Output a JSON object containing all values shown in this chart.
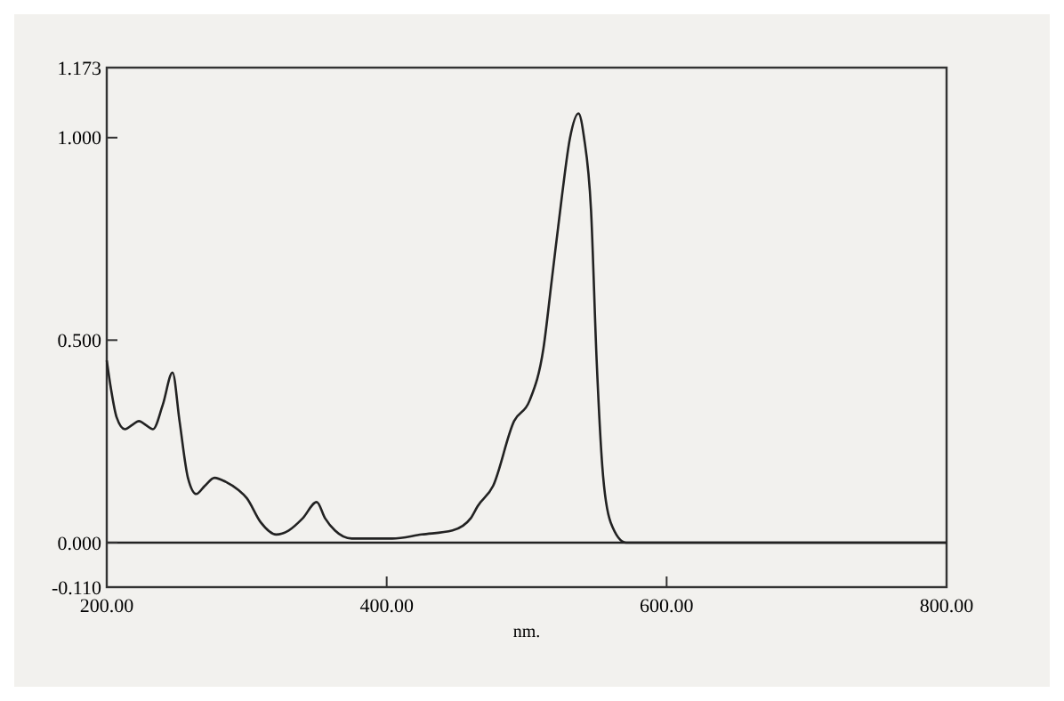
{
  "chart_data": {
    "type": "line",
    "xlabel": "nm.",
    "xlim": [
      200,
      800
    ],
    "ylim": [
      -0.11,
      1.173
    ],
    "xticks": [
      {
        "value": 200,
        "label": "200.00"
      },
      {
        "value": 400,
        "label": "400.00"
      },
      {
        "value": 600,
        "label": "600.00"
      },
      {
        "value": 800,
        "label": "800.00"
      }
    ],
    "yticks": [
      {
        "value": -0.11,
        "label": "-0.110"
      },
      {
        "value": 0,
        "label": "0.000"
      },
      {
        "value": 0.5,
        "label": "0.500"
      },
      {
        "value": 1,
        "label": "1.000"
      },
      {
        "value": 1.173,
        "label": "1.173"
      }
    ],
    "ref_lines": [
      {
        "axis": "y",
        "value": 0,
        "color": "#222222"
      }
    ],
    "series": [
      {
        "color": "#222222",
        "x": [
          200,
          203,
          207,
          213,
          218,
          223,
          228,
          233,
          240,
          247,
          252,
          258,
          264,
          270,
          277,
          285,
          294,
          300,
          310,
          321,
          330,
          340,
          350,
          356,
          363,
          375,
          386,
          404,
          425,
          447,
          460,
          465,
          476,
          491,
          502,
          512,
          518,
          525,
          531,
          537,
          541,
          546,
          550,
          554,
          560,
          571,
          600,
          700,
          800
        ],
        "values": [
          0.45,
          0.38,
          0.31,
          0.28,
          0.29,
          0.3,
          0.29,
          0.28,
          0.34,
          0.42,
          0.3,
          0.16,
          0.12,
          0.14,
          0.16,
          0.15,
          0.13,
          0.11,
          0.05,
          0.02,
          0.03,
          0.06,
          0.1,
          0.06,
          0.03,
          0.01,
          0.01,
          0.01,
          0.02,
          0.03,
          0.06,
          0.09,
          0.14,
          0.3,
          0.35,
          0.48,
          0.65,
          0.85,
          1.0,
          1.06,
          1.0,
          0.82,
          0.45,
          0.19,
          0.05,
          0,
          0,
          0,
          0
        ]
      }
    ],
    "grid": false,
    "line_style": "solid",
    "marker": "none"
  }
}
